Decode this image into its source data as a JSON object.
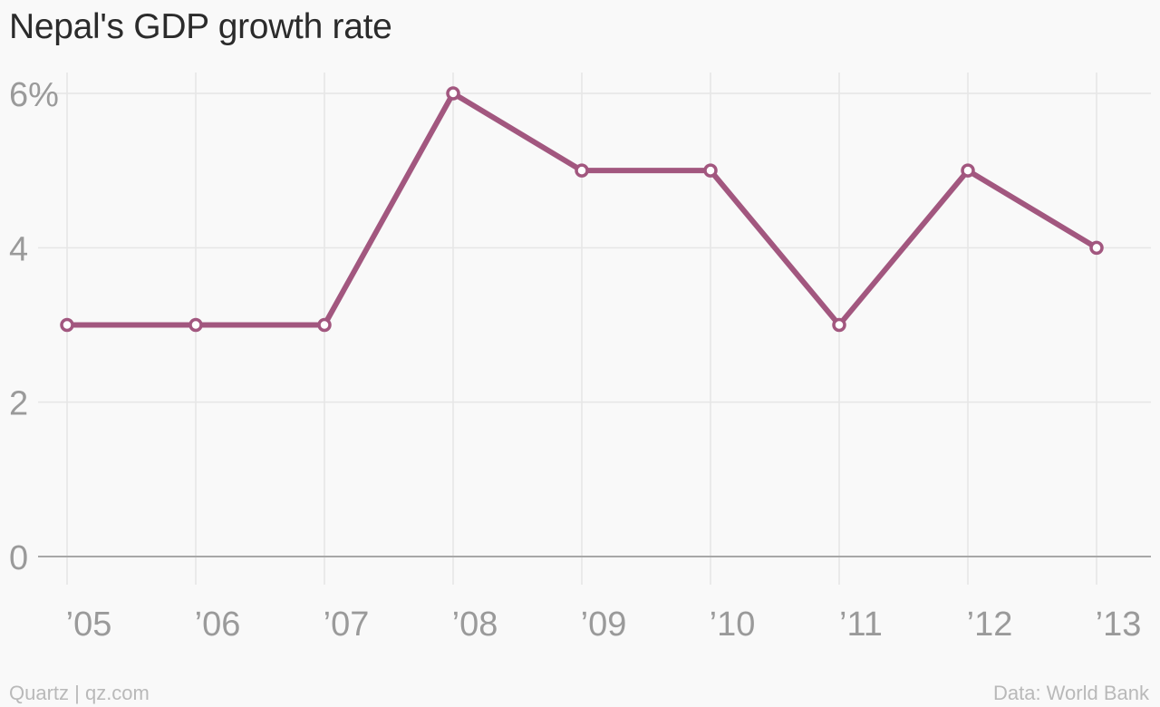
{
  "chart_data": {
    "type": "line",
    "title": "Nepal's GDP growth rate",
    "categories": [
      "’05",
      "’06",
      "’07",
      "’08",
      "’09",
      "’10",
      "’11",
      "’12",
      "’13"
    ],
    "series": [
      {
        "values": [
          3,
          3,
          3,
          6,
          5,
          5,
          3,
          5,
          4
        ]
      }
    ],
    "yticks": [
      "0",
      "2",
      "4",
      "6%"
    ],
    "ytick_values": [
      0,
      2,
      4,
      6
    ],
    "ylim": [
      0,
      6
    ],
    "grid": true,
    "line_color": "#a2577f"
  },
  "footer": {
    "source_left": "Quartz | qz.com",
    "source_right": "Data: World Bank"
  }
}
